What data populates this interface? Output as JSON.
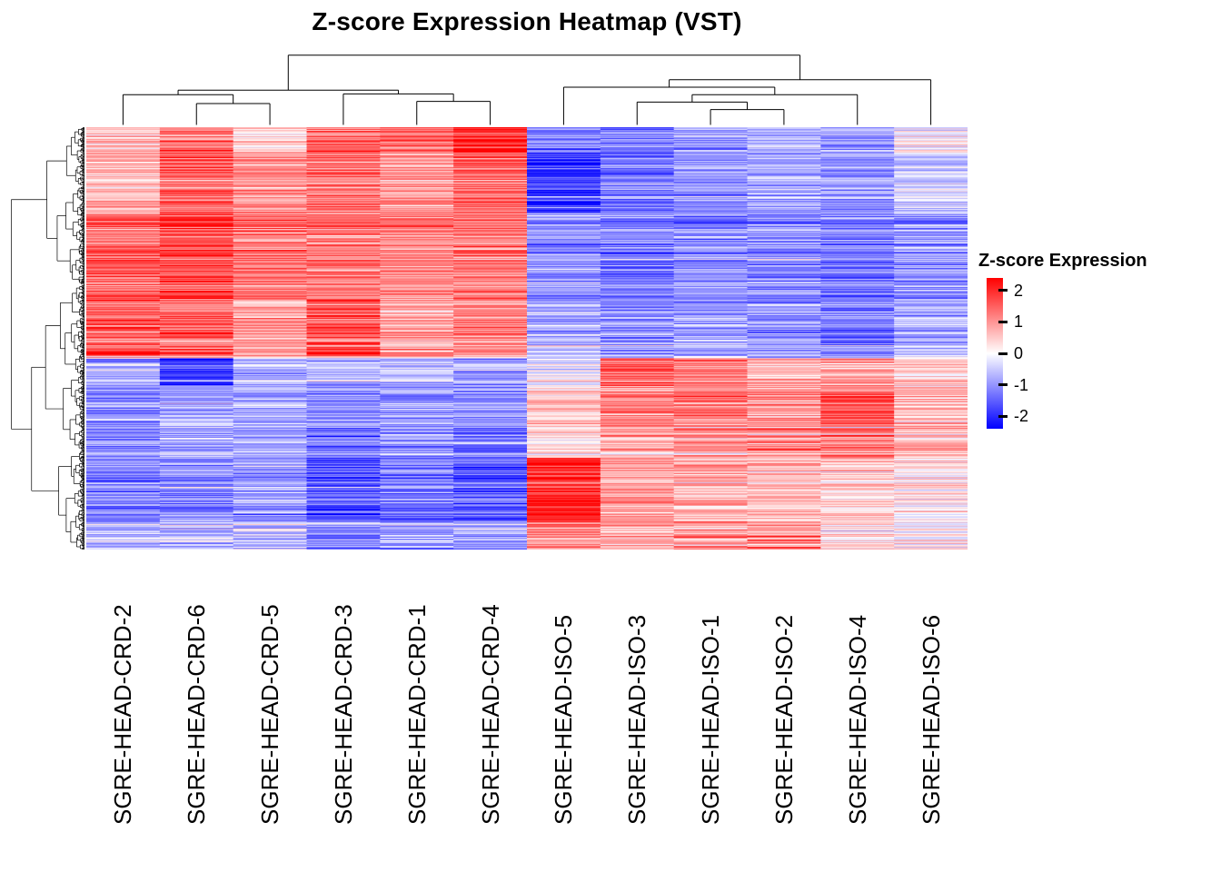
{
  "title": "Z-score Expression Heatmap (VST)",
  "legend": {
    "title": "Z-score Expression",
    "ticks": [
      "2",
      "1",
      "0",
      "-1",
      "-2"
    ],
    "tick_values": [
      2,
      1,
      0,
      -1,
      -2
    ],
    "bar_range": [
      -2.4,
      2.4
    ]
  },
  "chart_data": {
    "type": "heatmap",
    "title": "Z-score Expression Heatmap (VST)",
    "colorbar_title": "Z-score Expression",
    "columns": [
      "SGRE-HEAD-CRD-2",
      "SGRE-HEAD-CRD-6",
      "SGRE-HEAD-CRD-5",
      "SGRE-HEAD-CRD-3",
      "SGRE-HEAD-CRD-1",
      "SGRE-HEAD-CRD-4",
      "SGRE-HEAD-ISO-5",
      "SGRE-HEAD-ISO-3",
      "SGRE-HEAD-ISO-1",
      "SGRE-HEAD-ISO-2",
      "SGRE-HEAD-ISO-4",
      "SGRE-HEAD-ISO-6"
    ],
    "column_groups": {
      "CRD": [
        "SGRE-HEAD-CRD-2",
        "SGRE-HEAD-CRD-6",
        "SGRE-HEAD-CRD-5",
        "SGRE-HEAD-CRD-3",
        "SGRE-HEAD-CRD-1",
        "SGRE-HEAD-CRD-4"
      ],
      "ISO": [
        "SGRE-HEAD-ISO-5",
        "SGRE-HEAD-ISO-3",
        "SGRE-HEAD-ISO-1",
        "SGRE-HEAD-ISO-2",
        "SGRE-HEAD-ISO-4",
        "SGRE-HEAD-ISO-6"
      ]
    },
    "rows": {
      "count": 600,
      "note": "unlabeled gene rows, hierarchically clustered"
    },
    "colorscale": {
      "domain": [
        -2,
        0,
        2
      ],
      "colors": [
        "#0000FF",
        "#FFFFFF",
        "#FF0000"
      ]
    },
    "col_dendrogram": {
      "h": 0.93,
      "c": [
        {
          "h": 0.46,
          "c": [
            {
              "h": 0.4,
              "c": [
                {
                  "leaf": 0
                },
                {
                  "h": 0.28,
                  "c": [
                    {
                      "leaf": 1
                    },
                    {
                      "leaf": 2
                    }
                  ]
                }
              ]
            },
            {
              "h": 0.41,
              "c": [
                {
                  "leaf": 3
                },
                {
                  "h": 0.31,
                  "c": [
                    {
                      "leaf": 4
                    },
                    {
                      "leaf": 5
                    }
                  ]
                }
              ]
            }
          ]
        },
        {
          "h": 0.6,
          "c": [
            {
              "h": 0.5,
              "c": [
                {
                  "leaf": 6
                },
                {
                  "h": 0.4,
                  "c": [
                    {
                      "h": 0.3,
                      "c": [
                        {
                          "leaf": 7
                        },
                        {
                          "h": 0.2,
                          "c": [
                            {
                              "leaf": 8
                            },
                            {
                              "leaf": 9
                            }
                          ]
                        }
                      ]
                    },
                    {
                      "leaf": 10
                    }
                  ]
                }
              ]
            },
            {
              "leaf": 11
            }
          ]
        }
      ]
    },
    "row_blocks": [
      {
        "n": 36,
        "noise": 0.6,
        "values": [
          0.5,
          1.0,
          0.4,
          1.2,
          1.1,
          1.8,
          -0.9,
          -1.0,
          -0.7,
          -0.6,
          -0.7,
          0.0
        ]
      },
      {
        "n": 86,
        "noise": 0.5,
        "values": [
          0.6,
          1.3,
          0.9,
          1.1,
          0.8,
          1.2,
          -1.6,
          -1.1,
          -0.9,
          -0.7,
          -0.8,
          -0.4
        ]
      },
      {
        "n": 122,
        "noise": 0.55,
        "values": [
          1.2,
          1.4,
          1.0,
          1.0,
          0.9,
          1.0,
          -0.8,
          -1.0,
          -0.9,
          -0.9,
          -1.0,
          -0.8
        ]
      },
      {
        "n": 84,
        "noise": 0.6,
        "values": [
          1.3,
          1.2,
          0.8,
          1.3,
          0.7,
          0.9,
          -0.6,
          -0.8,
          -0.7,
          -0.8,
          -1.0,
          -0.6
        ]
      },
      {
        "n": 39,
        "noise": 0.6,
        "values": [
          -0.6,
          -1.4,
          -0.7,
          -0.5,
          -0.5,
          -0.6,
          -0.2,
          1.2,
          1.0,
          0.6,
          0.7,
          0.4
        ]
      },
      {
        "n": 58,
        "noise": 0.55,
        "values": [
          -0.8,
          -0.6,
          -0.6,
          -0.8,
          -0.7,
          -0.8,
          0.5,
          0.9,
          1.0,
          0.8,
          1.3,
          0.5
        ]
      },
      {
        "n": 45,
        "noise": 0.6,
        "values": [
          -0.9,
          -0.7,
          -0.7,
          -1.0,
          -0.9,
          -1.0,
          0.3,
          0.8,
          0.9,
          1.0,
          1.1,
          0.6
        ]
      },
      {
        "n": 90,
        "noise": 0.55,
        "values": [
          -1.0,
          -0.9,
          -0.8,
          -1.3,
          -1.1,
          -1.3,
          1.8,
          0.7,
          0.6,
          0.5,
          0.4,
          0.2
        ]
      },
      {
        "n": 40,
        "noise": 0.7,
        "values": [
          -0.5,
          -0.6,
          -0.4,
          -0.9,
          -0.7,
          -0.8,
          0.9,
          0.6,
          0.8,
          1.0,
          0.3,
          0.1
        ]
      }
    ]
  }
}
